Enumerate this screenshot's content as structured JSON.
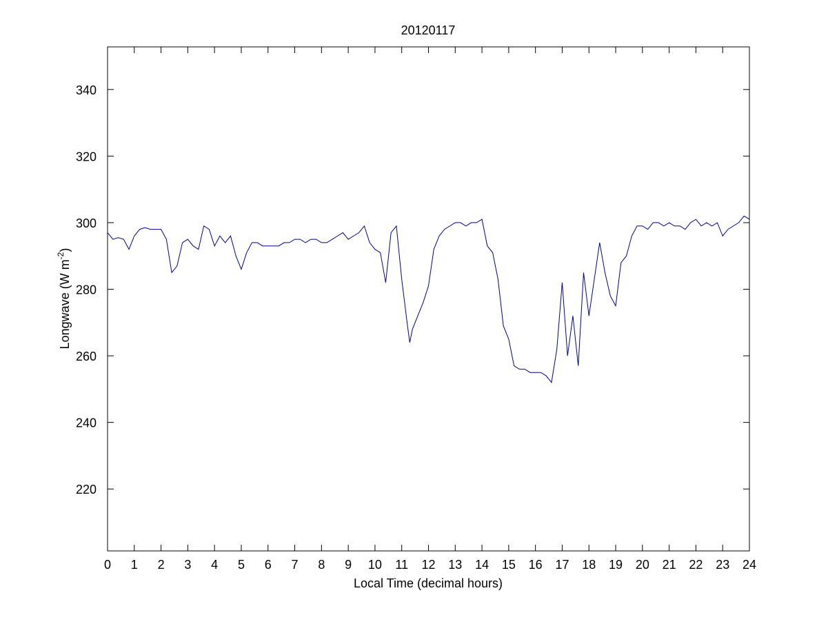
{
  "chart_data": {
    "type": "line",
    "title": "20120117",
    "xlabel": "Local Time (decimal hours)",
    "ylabel": [
      "Longwave (W m",
      "-2",
      ")"
    ],
    "x": [
      0,
      0.2,
      0.4,
      0.6,
      0.8,
      1,
      1.2,
      1.4,
      1.6,
      1.8,
      2,
      2.2,
      2.4,
      2.6,
      2.8,
      3,
      3.2,
      3.4,
      3.6,
      3.8,
      4,
      4.2,
      4.4,
      4.6,
      4.8,
      5,
      5.2,
      5.4,
      5.6,
      5.8,
      6,
      6.2,
      6.4,
      6.6,
      6.8,
      7,
      7.2,
      7.4,
      7.6,
      7.8,
      8,
      8.2,
      8.4,
      8.6,
      8.8,
      9,
      9.2,
      9.4,
      9.6,
      9.8,
      10,
      10.2,
      10.4,
      10.6,
      10.8,
      11,
      11.2,
      11.3,
      11.4,
      11.6,
      11.8,
      12,
      12.2,
      12.4,
      12.6,
      12.8,
      13,
      13.2,
      13.4,
      13.6,
      13.8,
      14,
      14.2,
      14.4,
      14.6,
      14.8,
      15,
      15.2,
      15.4,
      15.6,
      15.8,
      16,
      16.2,
      16.4,
      16.6,
      16.8,
      17,
      17.2,
      17.4,
      17.6,
      17.8,
      18,
      18.2,
      18.4,
      18.6,
      18.8,
      19,
      19.2,
      19.4,
      19.6,
      19.8,
      20,
      20.2,
      20.4,
      20.6,
      20.8,
      21,
      21.2,
      21.4,
      21.6,
      21.8,
      22,
      22.2,
      22.4,
      22.6,
      22.8,
      23,
      23.2,
      23.4,
      23.6,
      23.8,
      24
    ],
    "series": [
      {
        "color": "#00008f",
        "values": [
          297,
          295,
          295.5,
          295,
          292,
          296,
          298,
          298.5,
          298,
          298,
          298,
          295,
          285,
          287,
          294,
          295,
          293,
          292,
          299,
          298,
          293,
          296,
          294,
          296,
          290,
          286,
          291,
          294,
          294,
          293,
          293,
          293,
          293,
          294,
          294,
          295,
          295,
          294,
          295,
          295,
          294,
          294,
          295,
          296,
          297,
          295,
          296,
          297,
          299,
          294,
          292,
          291,
          282,
          297,
          299,
          283,
          270,
          264,
          268,
          272,
          276,
          281,
          292,
          296,
          298,
          299,
          300,
          300,
          299,
          300,
          300,
          301,
          293,
          291,
          283,
          269,
          265,
          257,
          256,
          256,
          255,
          255,
          255,
          254,
          252,
          262,
          282,
          260,
          272,
          257,
          285,
          272,
          283,
          294,
          285,
          278,
          275,
          288,
          290,
          296,
          299,
          299,
          298,
          300,
          300,
          299,
          300,
          299,
          299,
          298,
          300,
          301,
          299,
          300,
          299,
          300,
          296,
          298,
          299,
          300,
          302,
          301
        ]
      }
    ],
    "xlim": [
      0,
      24
    ],
    "ylim": [
      201.4,
      352.8
    ],
    "xticks": [
      0,
      1,
      2,
      3,
      4,
      5,
      6,
      7,
      8,
      9,
      10,
      11,
      12,
      13,
      14,
      15,
      16,
      17,
      18,
      19,
      20,
      21,
      22,
      23,
      24
    ],
    "yticks": [
      220,
      240,
      260,
      280,
      300,
      320,
      340
    ]
  }
}
